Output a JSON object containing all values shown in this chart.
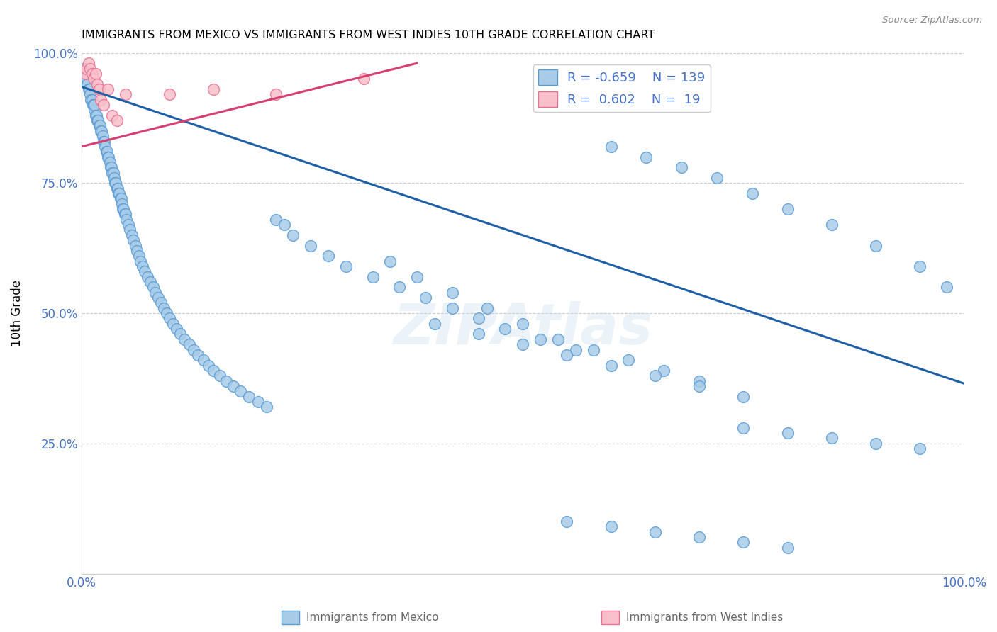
{
  "title": "IMMIGRANTS FROM MEXICO VS IMMIGRANTS FROM WEST INDIES 10TH GRADE CORRELATION CHART",
  "source": "Source: ZipAtlas.com",
  "ylabel": "10th Grade",
  "legend_label1": "Immigrants from Mexico",
  "legend_label2": "Immigrants from West Indies",
  "R1": -0.659,
  "N1": 139,
  "R2": 0.602,
  "N2": 19,
  "blue_color": "#a8cce8",
  "pink_color": "#f9c0cb",
  "blue_edge_color": "#5b9bd5",
  "pink_edge_color": "#e87090",
  "blue_line_color": "#1f5fa6",
  "pink_line_color": "#d44070",
  "axis_label_color": "#4472c4",
  "watermark": "ZIPAtlas",
  "xlim": [
    0.0,
    1.0
  ],
  "ylim": [
    0.0,
    1.0
  ],
  "blue_trend": [
    0.0,
    1.0,
    0.935,
    0.365
  ],
  "pink_trend": [
    0.0,
    0.38,
    0.82,
    0.98
  ],
  "blue_x": [
    0.003,
    0.004,
    0.005,
    0.006,
    0.007,
    0.008,
    0.009,
    0.01,
    0.011,
    0.012,
    0.013,
    0.014,
    0.015,
    0.015,
    0.016,
    0.017,
    0.018,
    0.019,
    0.02,
    0.021,
    0.022,
    0.023,
    0.024,
    0.025,
    0.026,
    0.027,
    0.028,
    0.029,
    0.03,
    0.031,
    0.032,
    0.033,
    0.034,
    0.035,
    0.036,
    0.037,
    0.038,
    0.039,
    0.04,
    0.041,
    0.042,
    0.043,
    0.044,
    0.045,
    0.046,
    0.047,
    0.048,
    0.049,
    0.05,
    0.051,
    0.053,
    0.055,
    0.057,
    0.059,
    0.061,
    0.063,
    0.065,
    0.067,
    0.069,
    0.072,
    0.075,
    0.078,
    0.081,
    0.084,
    0.087,
    0.09,
    0.093,
    0.097,
    0.1,
    0.104,
    0.108,
    0.112,
    0.117,
    0.122,
    0.127,
    0.132,
    0.138,
    0.144,
    0.15,
    0.157,
    0.164,
    0.172,
    0.18,
    0.19,
    0.2,
    0.21,
    0.22,
    0.23,
    0.24,
    0.26,
    0.28,
    0.3,
    0.33,
    0.36,
    0.39,
    0.42,
    0.45,
    0.48,
    0.52,
    0.56,
    0.6,
    0.64,
    0.68,
    0.72,
    0.76,
    0.8,
    0.85,
    0.9,
    0.95,
    0.98,
    0.35,
    0.38,
    0.42,
    0.46,
    0.5,
    0.54,
    0.58,
    0.62,
    0.66,
    0.7,
    0.75,
    0.8,
    0.85,
    0.9,
    0.95,
    0.4,
    0.45,
    0.5,
    0.55,
    0.6,
    0.65,
    0.7,
    0.75,
    0.55,
    0.6,
    0.65,
    0.7,
    0.75,
    0.8
  ],
  "blue_y": [
    0.97,
    0.96,
    0.95,
    0.95,
    0.94,
    0.93,
    0.93,
    0.92,
    0.91,
    0.91,
    0.9,
    0.9,
    0.89,
    0.9,
    0.88,
    0.88,
    0.87,
    0.87,
    0.86,
    0.86,
    0.85,
    0.85,
    0.84,
    0.83,
    0.83,
    0.82,
    0.81,
    0.81,
    0.8,
    0.8,
    0.79,
    0.78,
    0.78,
    0.77,
    0.77,
    0.76,
    0.75,
    0.75,
    0.74,
    0.74,
    0.73,
    0.73,
    0.72,
    0.72,
    0.71,
    0.7,
    0.7,
    0.69,
    0.69,
    0.68,
    0.67,
    0.66,
    0.65,
    0.64,
    0.63,
    0.62,
    0.61,
    0.6,
    0.59,
    0.58,
    0.57,
    0.56,
    0.55,
    0.54,
    0.53,
    0.52,
    0.51,
    0.5,
    0.49,
    0.48,
    0.47,
    0.46,
    0.45,
    0.44,
    0.43,
    0.42,
    0.41,
    0.4,
    0.39,
    0.38,
    0.37,
    0.36,
    0.35,
    0.34,
    0.33,
    0.32,
    0.68,
    0.67,
    0.65,
    0.63,
    0.61,
    0.59,
    0.57,
    0.55,
    0.53,
    0.51,
    0.49,
    0.47,
    0.45,
    0.43,
    0.82,
    0.8,
    0.78,
    0.76,
    0.73,
    0.7,
    0.67,
    0.63,
    0.59,
    0.55,
    0.6,
    0.57,
    0.54,
    0.51,
    0.48,
    0.45,
    0.43,
    0.41,
    0.39,
    0.37,
    0.28,
    0.27,
    0.26,
    0.25,
    0.24,
    0.48,
    0.46,
    0.44,
    0.42,
    0.4,
    0.38,
    0.36,
    0.34,
    0.1,
    0.09,
    0.08,
    0.07,
    0.06,
    0.05
  ],
  "pink_x": [
    0.004,
    0.006,
    0.008,
    0.01,
    0.012,
    0.014,
    0.016,
    0.018,
    0.02,
    0.022,
    0.025,
    0.03,
    0.035,
    0.04,
    0.05,
    0.1,
    0.15,
    0.22,
    0.32
  ],
  "pink_y": [
    0.96,
    0.97,
    0.98,
    0.97,
    0.96,
    0.95,
    0.96,
    0.94,
    0.93,
    0.91,
    0.9,
    0.93,
    0.88,
    0.87,
    0.92,
    0.92,
    0.93,
    0.92,
    0.95
  ]
}
